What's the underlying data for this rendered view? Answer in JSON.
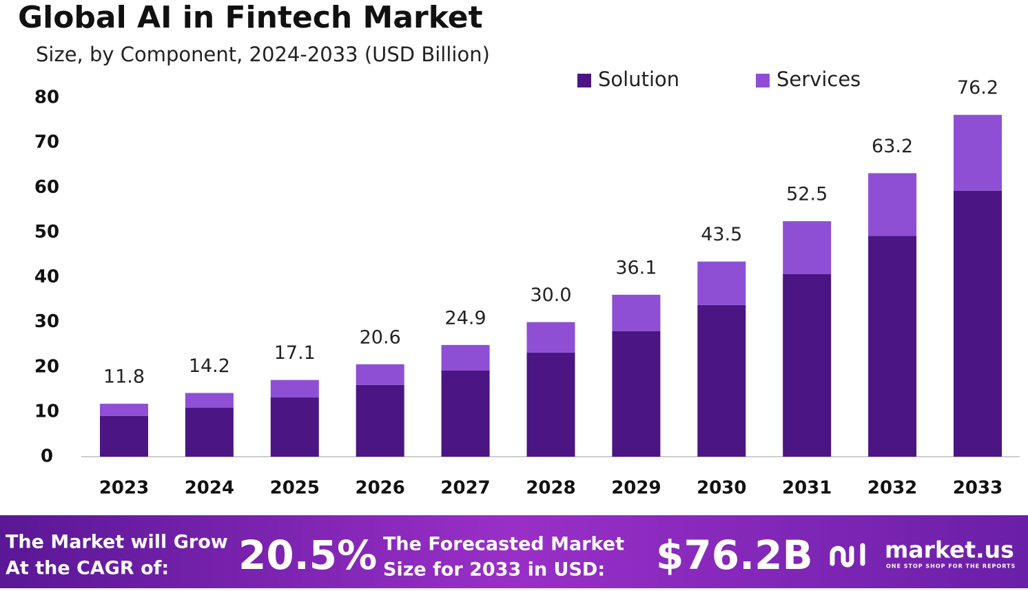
{
  "chart_data": {
    "type": "stacked_bar",
    "title": "Global AI in Fintech Market",
    "subtitle": "Size, by Component, 2024-2033 (USD Billion)",
    "categories": [
      "2023",
      "2024",
      "2025",
      "2026",
      "2027",
      "2028",
      "2029",
      "2030",
      "2031",
      "2032",
      "2033"
    ],
    "series": [
      {
        "name": "Solution",
        "color": "#4b1583",
        "values": [
          9.1,
          10.9,
          13.2,
          16.0,
          19.2,
          23.2,
          28.0,
          33.8,
          40.7,
          49.2,
          59.3
        ]
      },
      {
        "name": "Services",
        "color": "#8e4fd4",
        "values": [
          2.7,
          3.3,
          3.9,
          4.6,
          5.7,
          6.8,
          8.1,
          9.7,
          11.8,
          14.0,
          16.9
        ]
      }
    ],
    "totals": [
      11.8,
      14.2,
      17.1,
      20.6,
      24.9,
      30,
      36.1,
      43.5,
      52.5,
      63.2,
      76.2
    ],
    "value_labels": [
      "11.8",
      "14.2",
      "17.1",
      "20.6",
      "24.9",
      "30.0",
      "36.1",
      "43.5",
      "52.5",
      "63.2",
      "76.2"
    ],
    "ylim": [
      0,
      80
    ],
    "yticks": [
      0,
      10,
      20,
      30,
      40,
      50,
      60,
      70,
      80
    ],
    "grid": false,
    "legend": "top-right"
  },
  "footer": {
    "cagr_text_1": "The Market will Grow",
    "cagr_text_2": "At the CAGR of:",
    "cagr_value": "20.5%",
    "forecast_text_1": "The Forecasted Market",
    "forecast_text_2": "Size for 2033 in USD:",
    "forecast_value": "$76.2B",
    "brand": "market.us",
    "tagline": "ONE STOP SHOP FOR THE REPORTS"
  }
}
